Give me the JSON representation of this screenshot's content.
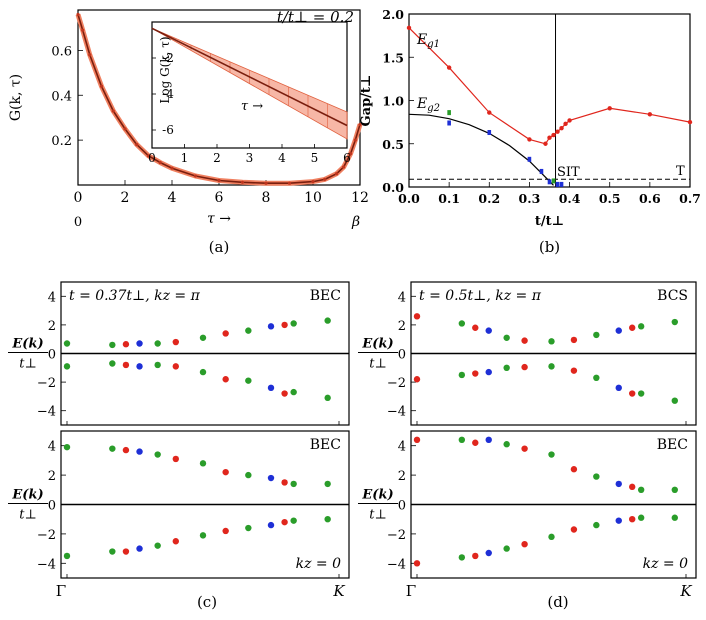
{
  "chart_data": [
    {
      "id": "a",
      "type": "line",
      "caption": "(a)",
      "xlabel": "τ →",
      "ylabel": "G(k, τ)",
      "xlim": [
        0,
        12
      ],
      "ylim": [
        0,
        0.78
      ],
      "x_ticks": [
        0,
        2,
        4,
        6,
        8,
        10,
        12
      ],
      "y_ticks": [
        0.2,
        0.4,
        0.6
      ],
      "x_tick_labels": [
        "0",
        "2",
        "4",
        "6",
        "8",
        "10",
        "12"
      ],
      "y_tick_labels": [
        "0.2",
        "0.4",
        "0.6"
      ],
      "x_sub_labels": [
        "0",
        "β"
      ],
      "series": [
        {
          "x": [
            0,
            0.2,
            0.5,
            1,
            1.5,
            2,
            2.5,
            3,
            3.5,
            4,
            5,
            6,
            7,
            8,
            9,
            10,
            10.5,
            11,
            11.3,
            11.6,
            11.8,
            12
          ],
          "y": [
            0.76,
            0.69,
            0.58,
            0.44,
            0.33,
            0.25,
            0.18,
            0.13,
            0.1,
            0.075,
            0.04,
            0.02,
            0.012,
            0.008,
            0.008,
            0.015,
            0.025,
            0.05,
            0.08,
            0.14,
            0.2,
            0.27
          ]
        }
      ],
      "inset": {
        "type": "line",
        "annotation": "t/t⊥ = 0.2",
        "xlabel": "τ →",
        "ylabel": "Log G(k, τ)",
        "xlim": [
          0,
          6
        ],
        "ylim": [
          -7,
          0
        ],
        "x_ticks": [
          0,
          1,
          2,
          3,
          4,
          5,
          6
        ],
        "y_ticks": [
          -2,
          -4,
          -6
        ],
        "x_tick_labels": [
          "0",
          "1",
          "2",
          "3",
          "4",
          "5",
          "6"
        ],
        "y_tick_labels": [
          "-2",
          "-4",
          "-6"
        ],
        "series": [
          {
            "x": [
              0,
              6
            ],
            "y": [
              -0.35,
              -5.75
            ],
            "band": [
              0,
              0.75
            ]
          }
        ]
      }
    },
    {
      "id": "b",
      "type": "line",
      "caption": "(b)",
      "xlabel": "t/t⊥",
      "ylabel": "Gap/t⊥",
      "xlim": [
        0,
        0.7
      ],
      "ylim": [
        0,
        2.0
      ],
      "x_ticks": [
        0,
        0.1,
        0.2,
        0.3,
        0.4,
        0.5,
        0.6,
        0.7
      ],
      "y_ticks": [
        0,
        0.5,
        1.0,
        1.5,
        2.0
      ],
      "x_tick_labels": [
        "0.0",
        "0.1",
        "0.2",
        "0.3",
        "0.4",
        "0.5",
        "0.6",
        "0.7"
      ],
      "y_tick_labels": [
        "0.0",
        "0.5",
        "1.0",
        "1.5",
        "2.0"
      ],
      "annotations": [
        "Eg1",
        "Eg2",
        "SIT",
        "T"
      ],
      "vline": 0.365,
      "hline": 0.09,
      "series": [
        {
          "name": "Eg1",
          "color": "#e0261d",
          "x": [
            0,
            0.1,
            0.2,
            0.3,
            0.34,
            0.35,
            0.36,
            0.37,
            0.38,
            0.39,
            0.4,
            0.5,
            0.6,
            0.7
          ],
          "y": [
            1.84,
            1.38,
            0.86,
            0.55,
            0.5,
            0.57,
            0.6,
            0.64,
            0.68,
            0.73,
            0.77,
            0.91,
            0.84,
            0.75
          ]
        },
        {
          "name": "Eg2",
          "color": "#000000",
          "x": [
            0,
            0.05,
            0.1,
            0.15,
            0.2,
            0.25,
            0.3,
            0.33,
            0.36
          ],
          "y": [
            0.84,
            0.83,
            0.79,
            0.72,
            0.62,
            0.48,
            0.3,
            0.16,
            0.02
          ]
        }
      ],
      "points": [
        {
          "x": 0.1,
          "y": 0.86,
          "color": "#2a9d2a"
        },
        {
          "x": 0.1,
          "y": 0.74,
          "color": "#1e2fd6"
        },
        {
          "x": 0.2,
          "y": 0.63,
          "color": "#1e2fd6"
        },
        {
          "x": 0.3,
          "y": 0.32,
          "color": "#1e2fd6"
        },
        {
          "x": 0.33,
          "y": 0.18,
          "color": "#1e2fd6"
        },
        {
          "x": 0.35,
          "y": 0.06,
          "color": "#1e2fd6"
        },
        {
          "x": 0.36,
          "y": 0.07,
          "color": "#2a9d2a"
        },
        {
          "x": 0.37,
          "y": 0.03,
          "color": "#1e2fd6"
        },
        {
          "x": 0.38,
          "y": 0.03,
          "color": "#1e2fd6"
        }
      ]
    },
    {
      "id": "c",
      "type": "scatter",
      "caption": "(c)",
      "x_tick_labels": [
        "Γ",
        "K"
      ],
      "ylabel": "E(k)/t⊥",
      "ylim": [
        -5,
        5
      ],
      "y_ticks": [
        -4,
        -2,
        0,
        2,
        4
      ],
      "y_tick_labels": [
        "−4",
        "−2",
        "0",
        "2",
        "4"
      ],
      "panels": [
        {
          "title": "t = 0.37t⊥, kz = π",
          "tag": "BEC",
          "kz_label": "",
          "upper": [
            0.7,
            0.6,
            0.65,
            0.7,
            0.7,
            0.8,
            1.1,
            1.4,
            1.6,
            1.9,
            2.0,
            2.1,
            2.3
          ],
          "lower": [
            -0.9,
            -0.7,
            -0.8,
            -0.9,
            -0.8,
            -0.9,
            -1.3,
            -1.8,
            -1.9,
            -2.4,
            -2.8,
            -2.7,
            -3.1
          ]
        },
        {
          "title": "",
          "tag": "BEC",
          "kz_label": "kz = 0",
          "upper": [
            3.9,
            3.8,
            3.7,
            3.6,
            3.4,
            3.1,
            2.8,
            2.2,
            2.0,
            1.8,
            1.5,
            1.4,
            1.4
          ],
          "lower": [
            -3.5,
            -3.2,
            -3.2,
            -3.0,
            -2.8,
            -2.5,
            -2.1,
            -1.8,
            -1.6,
            -1.4,
            -1.2,
            -1.1,
            -1.0
          ]
        }
      ],
      "x": [
        0,
        2,
        2.6,
        3.2,
        4,
        4.8,
        6,
        7,
        8,
        9,
        9.6,
        10,
        11.5
      ],
      "colors": [
        "#2a9d2a",
        "#2a9d2a",
        "#e0261d",
        "#1e2fd6",
        "#2a9d2a",
        "#e0261d",
        "#2a9d2a",
        "#e0261d",
        "#2a9d2a",
        "#1e2fd6",
        "#e0261d",
        "#2a9d2a",
        "#2a9d2a"
      ]
    },
    {
      "id": "d",
      "type": "scatter",
      "caption": "(d)",
      "x_tick_labels": [
        "Γ",
        "K"
      ],
      "ylabel": "E(k)/t⊥",
      "ylim": [
        -5,
        5
      ],
      "y_ticks": [
        -4,
        -2,
        0,
        2,
        4
      ],
      "y_tick_labels": [
        "−4",
        "−2",
        "0",
        "2",
        "4"
      ],
      "panels": [
        {
          "title": "t = 0.5t⊥, kz = π",
          "tag": "BCS",
          "kz_label": "",
          "upper": [
            2.6,
            2.1,
            1.8,
            1.6,
            1.1,
            0.9,
            0.85,
            0.95,
            1.3,
            1.6,
            1.8,
            1.9,
            2.2
          ],
          "lower": [
            -1.8,
            -1.5,
            -1.4,
            -1.3,
            -1.0,
            -0.95,
            -0.9,
            -1.2,
            -1.7,
            -2.4,
            -2.8,
            -2.8,
            -3.3
          ]
        },
        {
          "title": "",
          "tag": "BEC",
          "kz_label": "kz = 0",
          "upper": [
            4.4,
            4.4,
            4.2,
            4.4,
            4.1,
            3.8,
            3.4,
            2.4,
            1.9,
            1.4,
            1.2,
            1.0,
            1.0
          ],
          "lower": [
            -4.0,
            -3.6,
            -3.5,
            -3.3,
            -3.0,
            -2.7,
            -2.2,
            -1.7,
            -1.4,
            -1.1,
            -1.0,
            -0.9,
            -0.9
          ]
        }
      ],
      "x": [
        0,
        2,
        2.6,
        3.2,
        4,
        4.8,
        6,
        7,
        8,
        9,
        9.6,
        10,
        11.5
      ],
      "colors": [
        "#e0261d",
        "#2a9d2a",
        "#e0261d",
        "#1e2fd6",
        "#2a9d2a",
        "#e0261d",
        "#2a9d2a",
        "#e0261d",
        "#2a9d2a",
        "#1e2fd6",
        "#e0261d",
        "#2a9d2a",
        "#2a9d2a"
      ]
    }
  ]
}
